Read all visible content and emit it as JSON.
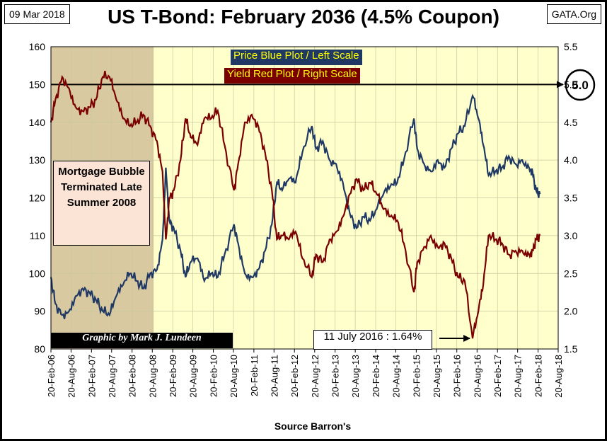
{
  "header": {
    "date": "09 Mar 2018",
    "title": "US T-Bond: February 2036 (4.5% Coupon)",
    "site": "GATA.Org"
  },
  "legend": {
    "price": "Price Blue Plot / Left Scale",
    "yield": "Yield Red Plot / Right Scale"
  },
  "annotations": {
    "mortgage": "Mortgage Bubble Terminated Late Summer 2008",
    "credit": "Graphic by Mark J. Lundeen",
    "low_yield": "11 July 2016 : 1.64%",
    "level_marker": "5.0"
  },
  "footer": {
    "source": "Source Barron's"
  },
  "colors": {
    "plot_bg": "#ffffcc",
    "shaded_bg": "#d9c9a1",
    "price": "#1f3864",
    "yield": "#7a0000",
    "legend_price_bg": "#1f3864",
    "legend_price_text": "#ffff00",
    "legend_yield_bg": "#7a0000",
    "legend_yield_text": "#ffff00"
  },
  "chart_data": {
    "type": "line",
    "x_start": "20-Feb-06",
    "x_end": "20-Aug-18",
    "x_ticks": [
      "20-Feb-06",
      "20-Aug-06",
      "20-Feb-07",
      "20-Aug-07",
      "20-Feb-08",
      "20-Aug-08",
      "20-Feb-09",
      "20-Aug-09",
      "20-Feb-10",
      "20-Aug-10",
      "20-Feb-11",
      "20-Aug-11",
      "20-Feb-12",
      "20-Aug-12",
      "20-Feb-13",
      "20-Aug-13",
      "20-Feb-14",
      "20-Aug-14",
      "20-Feb-15",
      "20-Aug-15",
      "20-Feb-16",
      "20-Aug-16",
      "20-Feb-17",
      "20-Aug-17",
      "20-Feb-18",
      "20-Aug-18"
    ],
    "left_axis": {
      "min": 80,
      "max": 160,
      "ticks": [
        "80",
        "90",
        "100",
        "110",
        "120",
        "130",
        "140",
        "150",
        "160"
      ]
    },
    "right_axis": {
      "min": 1.5,
      "max": 5.5,
      "ticks": [
        "1.5",
        "2.0",
        "2.5",
        "3.0",
        "3.5",
        "4.0",
        "4.5",
        "5.0",
        "5.5"
      ]
    },
    "shaded_region": {
      "from": "2006-02-20",
      "to": "2008-09-01"
    },
    "reference_line": {
      "axis": "right",
      "value": 5.0
    },
    "series": [
      {
        "name": "Price",
        "axis": "left",
        "points": [
          [
            "2006-02-20",
            99
          ],
          [
            "2006-04-01",
            92
          ],
          [
            "2006-06-01",
            89
          ],
          [
            "2006-08-01",
            90
          ],
          [
            "2006-10-01",
            94
          ],
          [
            "2006-12-01",
            96
          ],
          [
            "2007-02-01",
            95
          ],
          [
            "2007-04-01",
            93
          ],
          [
            "2007-06-01",
            90
          ],
          [
            "2007-08-01",
            89
          ],
          [
            "2007-10-01",
            94
          ],
          [
            "2007-12-01",
            97
          ],
          [
            "2008-02-01",
            100
          ],
          [
            "2008-04-01",
            98
          ],
          [
            "2008-06-01",
            96
          ],
          [
            "2008-08-01",
            100
          ],
          [
            "2008-10-01",
            101
          ],
          [
            "2008-11-20",
            109
          ],
          [
            "2008-12-20",
            128
          ],
          [
            "2009-01-20",
            114
          ],
          [
            "2009-03-01",
            112
          ],
          [
            "2009-05-01",
            106
          ],
          [
            "2009-06-15",
            99
          ],
          [
            "2009-08-01",
            103
          ],
          [
            "2009-10-01",
            104
          ],
          [
            "2009-12-01",
            98
          ],
          [
            "2010-02-01",
            100
          ],
          [
            "2010-04-01",
            99
          ],
          [
            "2010-06-01",
            105
          ],
          [
            "2010-08-25",
            113
          ],
          [
            "2010-10-01",
            108
          ],
          [
            "2010-12-01",
            100
          ],
          [
            "2011-02-01",
            99
          ],
          [
            "2011-04-01",
            101
          ],
          [
            "2011-06-01",
            106
          ],
          [
            "2011-08-01",
            113
          ],
          [
            "2011-09-15",
            124
          ],
          [
            "2011-11-01",
            122
          ],
          [
            "2012-01-01",
            125
          ],
          [
            "2012-03-01",
            124
          ],
          [
            "2012-05-01",
            132
          ],
          [
            "2012-07-25",
            139
          ],
          [
            "2012-09-01",
            133
          ],
          [
            "2012-11-01",
            135
          ],
          [
            "2013-01-01",
            130
          ],
          [
            "2013-03-01",
            129
          ],
          [
            "2013-05-01",
            124
          ],
          [
            "2013-07-01",
            116
          ],
          [
            "2013-09-01",
            112
          ],
          [
            "2013-11-01",
            115
          ],
          [
            "2014-01-01",
            114
          ],
          [
            "2014-03-01",
            117
          ],
          [
            "2014-05-01",
            121
          ],
          [
            "2014-07-01",
            123
          ],
          [
            "2014-09-01",
            124
          ],
          [
            "2014-11-01",
            130
          ],
          [
            "2015-01-30",
            141
          ],
          [
            "2015-03-01",
            133
          ],
          [
            "2015-05-01",
            129
          ],
          [
            "2015-07-01",
            127
          ],
          [
            "2015-09-01",
            130
          ],
          [
            "2015-11-01",
            128
          ],
          [
            "2016-01-01",
            133
          ],
          [
            "2016-03-01",
            137
          ],
          [
            "2016-05-01",
            139
          ],
          [
            "2016-07-11",
            147
          ],
          [
            "2016-09-01",
            141
          ],
          [
            "2016-10-15",
            134
          ],
          [
            "2016-12-01",
            126
          ],
          [
            "2017-02-01",
            127
          ],
          [
            "2017-04-01",
            128
          ],
          [
            "2017-06-01",
            131
          ],
          [
            "2017-08-01",
            129
          ],
          [
            "2017-10-01",
            130
          ],
          [
            "2017-12-01",
            128
          ],
          [
            "2018-01-01",
            127
          ],
          [
            "2018-02-01",
            122
          ],
          [
            "2018-03-09",
            121
          ]
        ]
      },
      {
        "name": "Yield",
        "axis": "right",
        "points": [
          [
            "2006-02-20",
            4.5
          ],
          [
            "2006-04-01",
            4.8
          ],
          [
            "2006-06-01",
            5.1
          ],
          [
            "2006-08-01",
            4.95
          ],
          [
            "2006-10-01",
            4.7
          ],
          [
            "2006-12-01",
            4.65
          ],
          [
            "2007-02-01",
            4.7
          ],
          [
            "2007-04-01",
            4.8
          ],
          [
            "2007-06-01",
            5.1
          ],
          [
            "2007-08-01",
            5.1
          ],
          [
            "2007-10-01",
            4.8
          ],
          [
            "2007-12-01",
            4.55
          ],
          [
            "2008-02-01",
            4.45
          ],
          [
            "2008-04-01",
            4.5
          ],
          [
            "2008-06-01",
            4.6
          ],
          [
            "2008-08-01",
            4.45
          ],
          [
            "2008-10-01",
            4.25
          ],
          [
            "2008-11-20",
            3.85
          ],
          [
            "2008-12-20",
            2.95
          ],
          [
            "2009-01-20",
            3.5
          ],
          [
            "2009-03-01",
            3.6
          ],
          [
            "2009-05-01",
            4.0
          ],
          [
            "2009-06-15",
            4.55
          ],
          [
            "2009-08-01",
            4.3
          ],
          [
            "2009-10-01",
            4.2
          ],
          [
            "2009-12-01",
            4.55
          ],
          [
            "2010-02-01",
            4.55
          ],
          [
            "2010-04-01",
            4.65
          ],
          [
            "2010-06-01",
            4.2
          ],
          [
            "2010-08-25",
            3.6
          ],
          [
            "2010-10-01",
            3.95
          ],
          [
            "2010-12-01",
            4.5
          ],
          [
            "2011-02-01",
            4.6
          ],
          [
            "2011-04-01",
            4.45
          ],
          [
            "2011-06-01",
            4.1
          ],
          [
            "2011-08-01",
            3.6
          ],
          [
            "2011-09-15",
            2.95
          ],
          [
            "2011-11-01",
            3.0
          ],
          [
            "2012-01-01",
            2.95
          ],
          [
            "2012-03-01",
            3.05
          ],
          [
            "2012-05-01",
            2.7
          ],
          [
            "2012-07-25",
            2.45
          ],
          [
            "2012-09-01",
            2.75
          ],
          [
            "2012-11-01",
            2.65
          ],
          [
            "2013-01-01",
            2.95
          ],
          [
            "2013-03-01",
            3.05
          ],
          [
            "2013-05-01",
            3.25
          ],
          [
            "2013-07-01",
            3.55
          ],
          [
            "2013-09-01",
            3.75
          ],
          [
            "2013-11-01",
            3.6
          ],
          [
            "2014-01-01",
            3.7
          ],
          [
            "2014-03-01",
            3.55
          ],
          [
            "2014-05-01",
            3.35
          ],
          [
            "2014-07-01",
            3.25
          ],
          [
            "2014-09-01",
            3.2
          ],
          [
            "2014-11-01",
            2.9
          ],
          [
            "2015-01-30",
            2.25
          ],
          [
            "2015-03-01",
            2.65
          ],
          [
            "2015-05-01",
            2.85
          ],
          [
            "2015-07-01",
            3.0
          ],
          [
            "2015-09-01",
            2.85
          ],
          [
            "2015-11-01",
            2.9
          ],
          [
            "2016-01-01",
            2.7
          ],
          [
            "2016-03-01",
            2.45
          ],
          [
            "2016-05-01",
            2.4
          ],
          [
            "2016-07-11",
            1.64
          ],
          [
            "2016-09-01",
            2.0
          ],
          [
            "2016-10-15",
            2.35
          ],
          [
            "2016-12-01",
            3.0
          ],
          [
            "2017-02-01",
            2.95
          ],
          [
            "2017-04-01",
            2.9
          ],
          [
            "2017-06-01",
            2.75
          ],
          [
            "2017-08-01",
            2.8
          ],
          [
            "2017-10-01",
            2.8
          ],
          [
            "2017-12-01",
            2.75
          ],
          [
            "2018-01-01",
            2.8
          ],
          [
            "2018-02-01",
            2.95
          ],
          [
            "2018-03-09",
            3.0
          ]
        ]
      }
    ]
  }
}
